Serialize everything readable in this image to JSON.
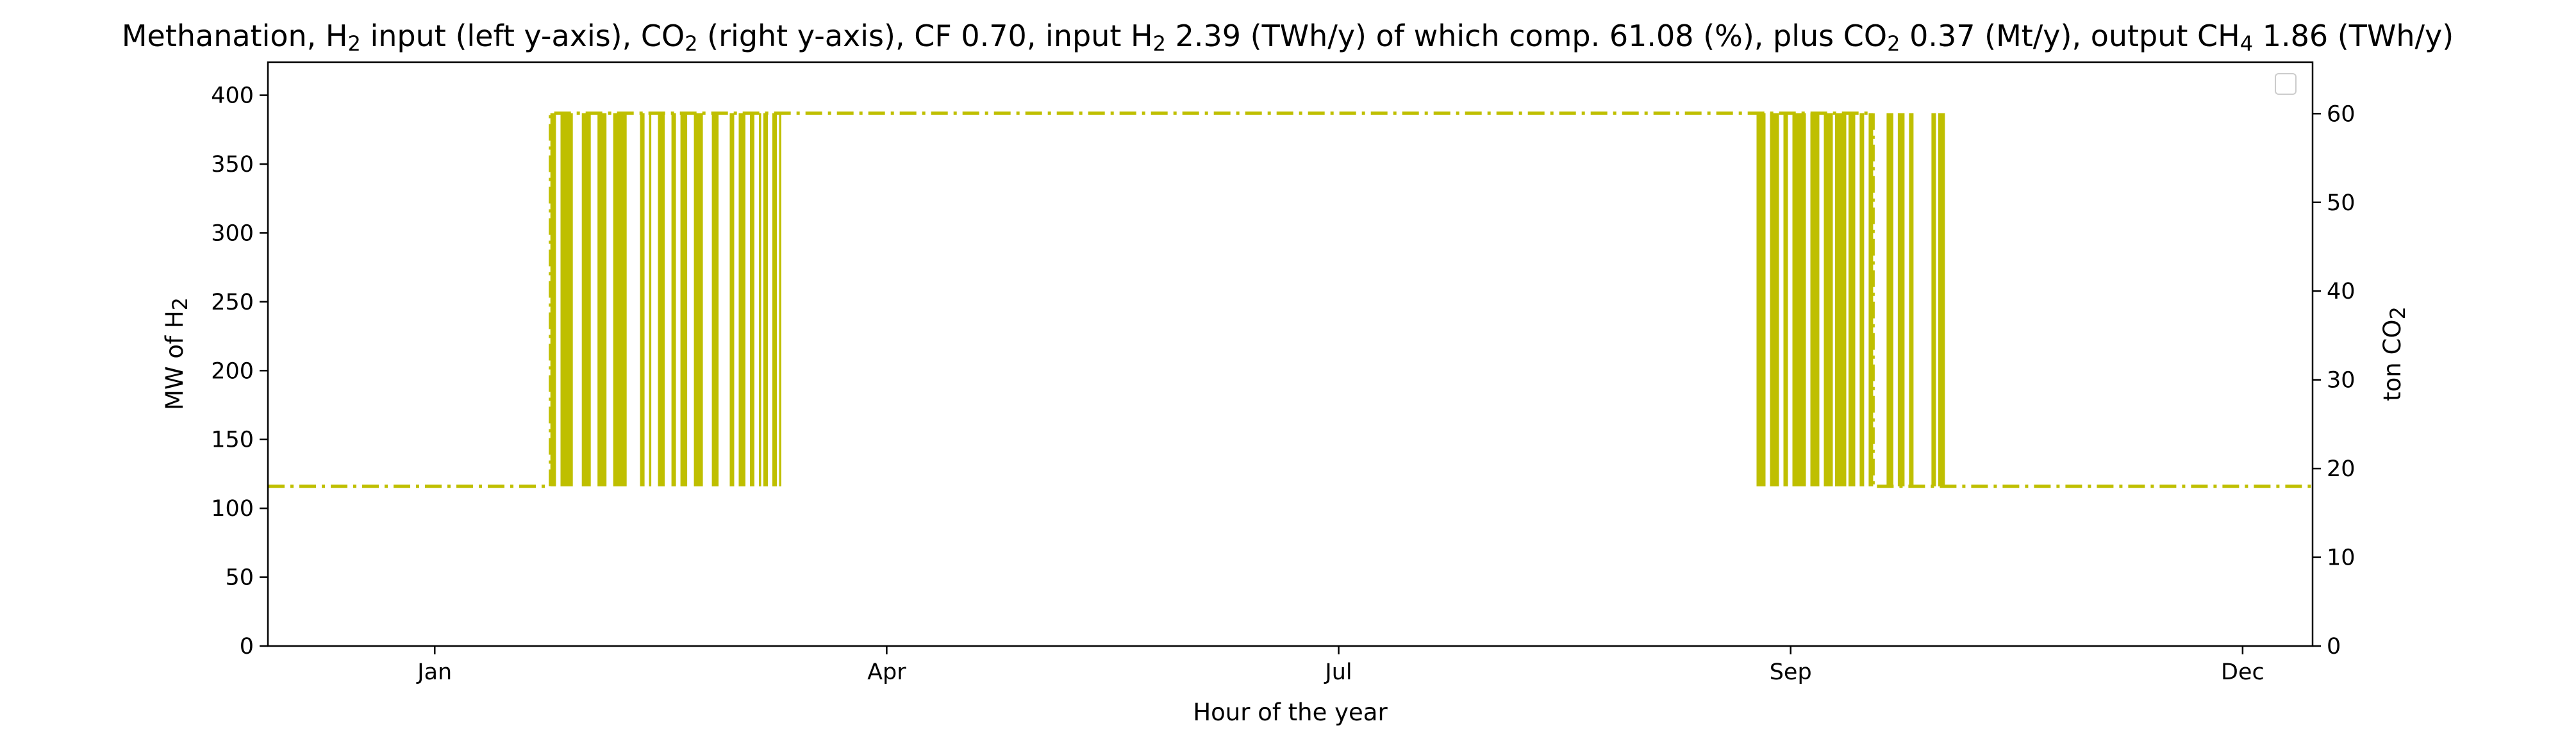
{
  "chart_data": {
    "type": "line",
    "title": {
      "segments": [
        {
          "t": "Methanation, H"
        },
        {
          "t": "2",
          "sub": true
        },
        {
          "t": " input (left y-axis), CO"
        },
        {
          "t": "2",
          "sub": true
        },
        {
          "t": " (right y-axis), CF 0.70, input H"
        },
        {
          "t": "2",
          "sub": true
        },
        {
          "t": " 2.39 (TWh/y) of which comp. 61.08 (%), plus CO"
        },
        {
          "t": "2",
          "sub": true
        },
        {
          "t": " 0.37 (Mt/y), output CH"
        },
        {
          "t": "4",
          "sub": true
        },
        {
          "t": " 1.86 (TWh/y)"
        }
      ]
    },
    "xlabel": "Hour of the year",
    "ylabel_left": [
      {
        "t": "MW of H"
      },
      {
        "t": "2",
        "sub": true
      }
    ],
    "ylabel_right": [
      {
        "t": "ton CO"
      },
      {
        "t": "2",
        "sub": true
      }
    ],
    "x_range": [
      -360,
      8760
    ],
    "ylim_left": [
      0,
      424
    ],
    "ylim_right": [
      0,
      65.8
    ],
    "x_ticks": [
      {
        "value": 384,
        "label": "Jan"
      },
      {
        "value": 2400,
        "label": "Apr"
      },
      {
        "value": 4416,
        "label": "Jul"
      },
      {
        "value": 6432,
        "label": "Sep"
      },
      {
        "value": 8448,
        "label": "Dec"
      }
    ],
    "y_ticks_left": [
      0,
      50,
      100,
      150,
      200,
      250,
      300,
      350,
      400
    ],
    "y_ticks_right": [
      0,
      10,
      20,
      30,
      40,
      50,
      60
    ],
    "legend": {
      "position": "upper right",
      "entries": []
    },
    "line_color": "#bfbf00",
    "line_style": "dash-dot",
    "min_level": 116,
    "max_level": 387,
    "series": [
      {
        "axis": "left",
        "shape": "step",
        "points": [
          [
            -360,
            116
          ],
          [
            900,
            116
          ],
          [
            900,
            387
          ],
          [
            2000,
            387
          ],
          [
            6800,
            387
          ],
          [
            6800,
            116
          ],
          [
            8760,
            116
          ]
        ]
      }
    ],
    "oscillation_bands": [
      [
        900,
        925
      ],
      [
        945,
        1000
      ],
      [
        1040,
        1080
      ],
      [
        1110,
        1150
      ],
      [
        1180,
        1240
      ],
      [
        1300,
        1320
      ],
      [
        1340,
        1350
      ],
      [
        1380,
        1410
      ],
      [
        1440,
        1460
      ],
      [
        1480,
        1510
      ],
      [
        1540,
        1580
      ],
      [
        1620,
        1650
      ],
      [
        1700,
        1720
      ],
      [
        1740,
        1770
      ],
      [
        1790,
        1810
      ],
      [
        1830,
        1840
      ],
      [
        1850,
        1870
      ],
      [
        1890,
        1910
      ],
      [
        1920,
        1930
      ],
      [
        6280,
        6320
      ],
      [
        6340,
        6380
      ],
      [
        6400,
        6420
      ],
      [
        6440,
        6500
      ],
      [
        6520,
        6560
      ],
      [
        6580,
        6620
      ],
      [
        6630,
        6680
      ],
      [
        6690,
        6720
      ],
      [
        6740,
        6760
      ],
      [
        6780,
        6800
      ],
      [
        6860,
        6890
      ],
      [
        6910,
        6940
      ],
      [
        6960,
        6980
      ],
      [
        7060,
        7080
      ],
      [
        7090,
        7120
      ]
    ]
  }
}
